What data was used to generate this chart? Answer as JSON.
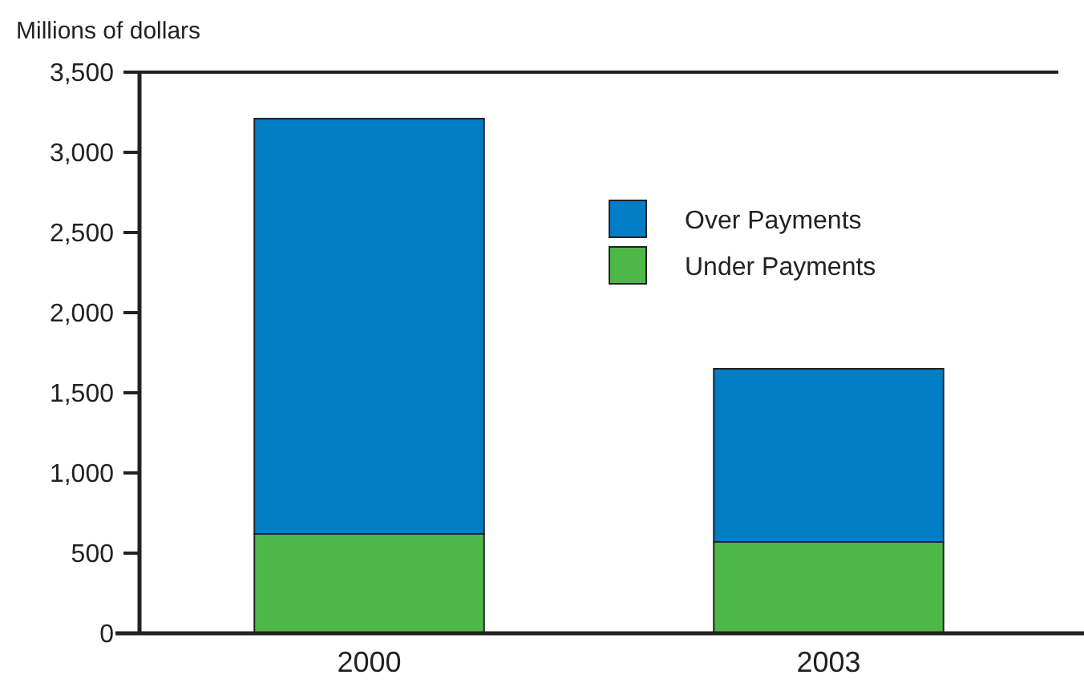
{
  "chart_data": {
    "type": "bar",
    "ylabel": "Millions of dollars",
    "categories": [
      "2000",
      "2003"
    ],
    "stacked": true,
    "series": [
      {
        "name": "Under Payments",
        "color": "#4db848",
        "values": [
          620,
          570
        ]
      },
      {
        "name": "Over Payments",
        "color": "#007dc5",
        "values": [
          2590,
          1080
        ]
      }
    ],
    "ylim": [
      0,
      3500
    ],
    "yticks": [
      {
        "value": 0,
        "label": "0"
      },
      {
        "value": 500,
        "label": "500"
      },
      {
        "value": 1000,
        "label": "1,000"
      },
      {
        "value": 1500,
        "label": "1,500"
      },
      {
        "value": 2000,
        "label": "2,000"
      },
      {
        "value": 2500,
        "label": "2,500"
      },
      {
        "value": 3000,
        "label": "3,000"
      },
      {
        "value": 3500,
        "label": "3,500"
      }
    ],
    "legend": "top right"
  }
}
